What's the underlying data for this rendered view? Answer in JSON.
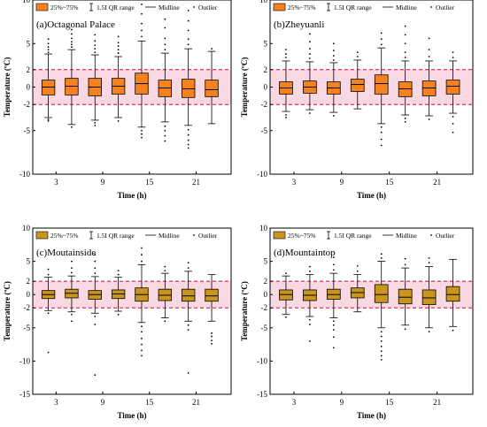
{
  "legend": {
    "box_label": "25%~75%",
    "range_label": "1.5I QR range",
    "midline_label": "Midline",
    "outlier_label": "Outlier"
  },
  "colors": {
    "orange": "#f5821f",
    "olive": "#c8961e",
    "band": "#f6b8c8",
    "ref_line": "#e0003a"
  },
  "chart_data": [
    {
      "type": "box",
      "title": "(a)Octagonal Palace",
      "xlabel": "Time (h)",
      "ylabel": "Temperature (ºC)",
      "x_ticks": [
        3,
        9,
        15,
        21
      ],
      "y_ticks": [
        -10,
        -5,
        -2,
        0,
        2,
        5,
        10
      ],
      "ylim": [
        -10,
        10
      ],
      "band": [
        -2,
        2
      ],
      "box_color": "orange",
      "boxes": [
        {
          "x": 2,
          "q1": -0.9,
          "median": 0.0,
          "q3": 0.8,
          "low": -3.5,
          "high": 3.8,
          "outliers": [
            -3.9,
            -3.7,
            4.0,
            4.3,
            4.6,
            5.0,
            5.5
          ]
        },
        {
          "x": 5,
          "q1": -0.9,
          "median": 0.1,
          "q3": 1.0,
          "low": -4.3,
          "high": 4.3,
          "outliers": [
            -4.6,
            4.6,
            4.9,
            5.2,
            5.6,
            6.1,
            6.6
          ]
        },
        {
          "x": 8,
          "q1": -1.0,
          "median": 0.0,
          "q3": 1.0,
          "low": -3.8,
          "high": 3.7,
          "outliers": [
            -4.1,
            -4.4,
            4.0,
            4.4,
            4.8,
            5.3,
            6.0
          ]
        },
        {
          "x": 11,
          "q1": -0.8,
          "median": 0.1,
          "q3": 1.0,
          "low": -3.5,
          "high": 3.5,
          "outliers": [
            -3.9,
            3.9,
            4.3,
            4.7,
            5.1,
            5.8
          ]
        },
        {
          "x": 14,
          "q1": -0.8,
          "median": 0.4,
          "q3": 1.6,
          "low": -4.6,
          "high": 5.3,
          "outliers": [
            -5.0,
            -5.4,
            -5.8,
            5.8,
            6.5,
            7.3,
            8.4,
            9.5
          ]
        },
        {
          "x": 17,
          "q1": -1.1,
          "median": -0.1,
          "q3": 0.8,
          "low": -4.0,
          "high": 3.9,
          "outliers": [
            -4.5,
            -5.0,
            -5.6,
            -6.2,
            4.3,
            4.9,
            5.6,
            6.8,
            7.8
          ]
        },
        {
          "x": 20,
          "q1": -1.2,
          "median": -0.2,
          "q3": 0.9,
          "low": -4.4,
          "high": 4.4,
          "outliers": [
            -4.9,
            -5.5,
            -6.1,
            -6.6,
            -7.0,
            4.9,
            5.5,
            6.5,
            7.6,
            8.8
          ]
        },
        {
          "x": 23,
          "q1": -1.1,
          "median": -0.3,
          "q3": 0.8,
          "low": -4.2,
          "high": 4.1,
          "outliers": [
            4.4
          ]
        }
      ]
    },
    {
      "type": "box",
      "title": "(b)Zheyuanli",
      "xlabel": "Time (h)",
      "ylabel": "Temperature (ºC)",
      "x_ticks": [
        3,
        9,
        15,
        21
      ],
      "y_ticks": [
        -10,
        -5,
        -2,
        0,
        2,
        5,
        10
      ],
      "ylim": [
        -10,
        10
      ],
      "band": [
        -2,
        2
      ],
      "box_color": "orange",
      "boxes": [
        {
          "x": 2,
          "q1": -0.8,
          "median": -0.1,
          "q3": 0.6,
          "low": -2.8,
          "high": 3.0,
          "outliers": [
            -3.2,
            -3.5,
            3.4,
            3.8,
            4.3
          ]
        },
        {
          "x": 5,
          "q1": -0.7,
          "median": 0.0,
          "q3": 0.7,
          "low": -2.6,
          "high": 2.9,
          "outliers": [
            -3.0,
            3.3,
            3.8,
            4.4,
            5.2,
            6.1
          ]
        },
        {
          "x": 8,
          "q1": -0.8,
          "median": -0.1,
          "q3": 0.6,
          "low": -2.9,
          "high": 2.8,
          "outliers": [
            -3.3,
            3.1,
            3.6,
            4.2,
            5.0
          ]
        },
        {
          "x": 11,
          "q1": -0.5,
          "median": 0.3,
          "q3": 0.9,
          "low": -2.5,
          "high": 3.1,
          "outliers": [
            3.5,
            4.0
          ]
        },
        {
          "x": 14,
          "q1": -0.8,
          "median": 0.4,
          "q3": 1.4,
          "low": -4.2,
          "high": 4.5,
          "outliers": [
            -4.6,
            -5.2,
            -6.0,
            -6.7,
            4.9,
            5.5,
            6.2
          ]
        },
        {
          "x": 17,
          "q1": -1.1,
          "median": -0.2,
          "q3": 0.6,
          "low": -3.2,
          "high": 3.0,
          "outliers": [
            -3.6,
            -4.0,
            3.4,
            4.0,
            5.0,
            6.0,
            7.0
          ]
        },
        {
          "x": 20,
          "q1": -1.0,
          "median": -0.1,
          "q3": 0.7,
          "low": -3.3,
          "high": 3.0,
          "outliers": [
            -3.7,
            3.5,
            4.3,
            5.6
          ]
        },
        {
          "x": 23,
          "q1": -0.8,
          "median": 0.1,
          "q3": 0.8,
          "low": -3.0,
          "high": 3.0,
          "outliers": [
            -3.4,
            -4.2,
            -5.2,
            3.4,
            4.0
          ]
        }
      ]
    },
    {
      "type": "box",
      "title": "(c)Moutainside",
      "xlabel": "Time (h)",
      "ylabel": "Temperature (ºC)",
      "x_ticks": [
        3,
        9,
        15,
        21
      ],
      "y_ticks": [
        -15,
        -10,
        -5,
        -2,
        0,
        2,
        5,
        10
      ],
      "ylim": [
        -15,
        10
      ],
      "band": [
        -2,
        2
      ],
      "box_color": "olive",
      "boxes": [
        {
          "x": 2,
          "q1": -0.6,
          "median": 0.0,
          "q3": 0.6,
          "low": -2.4,
          "high": 2.6,
          "outliers": [
            -2.8,
            3.0,
            3.8,
            -8.7
          ]
        },
        {
          "x": 5,
          "q1": -0.5,
          "median": 0.2,
          "q3": 0.8,
          "low": -2.6,
          "high": 2.8,
          "outliers": [
            -3.0,
            -4.0,
            3.3,
            4.0,
            5.0
          ]
        },
        {
          "x": 8,
          "q1": -0.7,
          "median": 0.0,
          "q3": 0.6,
          "low": -2.8,
          "high": 2.7,
          "outliers": [
            -3.3,
            -4.5,
            -12.1,
            3.2,
            4.0,
            5.0,
            6.0
          ]
        },
        {
          "x": 11,
          "q1": -0.6,
          "median": 0.1,
          "q3": 0.7,
          "low": -2.5,
          "high": 2.6,
          "outliers": [
            -3.0,
            3.0,
            3.6
          ]
        },
        {
          "x": 14,
          "q1": -1.0,
          "median": 0.0,
          "q3": 1.0,
          "low": -4.2,
          "high": 4.5,
          "outliers": [
            -4.8,
            -5.6,
            -6.6,
            -7.5,
            -8.4,
            -9.2,
            5.0,
            6.0,
            7.0
          ]
        },
        {
          "x": 17,
          "q1": -0.9,
          "median": -0.1,
          "q3": 0.8,
          "low": -3.5,
          "high": 3.2,
          "outliers": [
            -4.0,
            3.6,
            4.2
          ]
        },
        {
          "x": 20,
          "q1": -1.0,
          "median": -0.2,
          "q3": 0.8,
          "low": -4.0,
          "high": 3.5,
          "outliers": [
            -4.6,
            -5.3,
            -11.8,
            4.0,
            4.8
          ]
        },
        {
          "x": 23,
          "q1": -1.0,
          "median": -0.2,
          "q3": 0.8,
          "low": -4.0,
          "high": 3.0,
          "outliers": [
            -5.8,
            -6.3,
            -6.9,
            -7.4
          ]
        }
      ]
    },
    {
      "type": "box",
      "title": "(d)Mountaintop",
      "xlabel": "Time (h)",
      "ylabel": "Temperature (ºC)",
      "x_ticks": [
        3,
        9,
        15,
        21
      ],
      "y_ticks": [
        -15,
        -10,
        -5,
        -2,
        0,
        2,
        5,
        10
      ],
      "ylim": [
        -15,
        10
      ],
      "band": [
        -2,
        2
      ],
      "box_color": "olive",
      "boxes": [
        {
          "x": 2,
          "q1": -0.8,
          "median": 0.0,
          "q3": 0.7,
          "low": -3.0,
          "high": 2.8,
          "outliers": [
            -3.4,
            3.2
          ]
        },
        {
          "x": 5,
          "q1": -0.9,
          "median": -0.1,
          "q3": 0.7,
          "low": -3.3,
          "high": 3.0,
          "outliers": [
            -3.8,
            -4.5,
            -7.0,
            3.5,
            4.2
          ]
        },
        {
          "x": 8,
          "q1": -0.7,
          "median": 0.0,
          "q3": 0.8,
          "low": -3.5,
          "high": 3.2,
          "outliers": [
            -4.0,
            -4.6,
            -5.3,
            -6.4,
            -8.0,
            3.7,
            4.5,
            5.6
          ]
        },
        {
          "x": 11,
          "q1": -0.5,
          "median": 0.3,
          "q3": 1.0,
          "low": -2.6,
          "high": 3.0,
          "outliers": [
            3.5,
            4.3
          ]
        },
        {
          "x": 14,
          "q1": -1.2,
          "median": 0.0,
          "q3": 1.5,
          "low": -5.0,
          "high": 5.0,
          "outliers": [
            -5.6,
            -6.3,
            -7.0,
            -7.8,
            -8.5,
            -9.2,
            -9.8,
            5.5,
            6.1
          ]
        },
        {
          "x": 17,
          "q1": -1.4,
          "median": -0.4,
          "q3": 0.8,
          "low": -4.6,
          "high": 4.0,
          "outliers": [
            -5.2,
            4.5,
            5.4
          ]
        },
        {
          "x": 20,
          "q1": -1.5,
          "median": -0.5,
          "q3": 0.7,
          "low": -5.0,
          "high": 4.2,
          "outliers": [
            -5.6,
            4.8,
            5.5
          ]
        },
        {
          "x": 23,
          "q1": -1.0,
          "median": 0.0,
          "q3": 1.2,
          "low": -4.8,
          "high": 5.3,
          "outliers": [
            -5.4
          ]
        }
      ]
    }
  ]
}
